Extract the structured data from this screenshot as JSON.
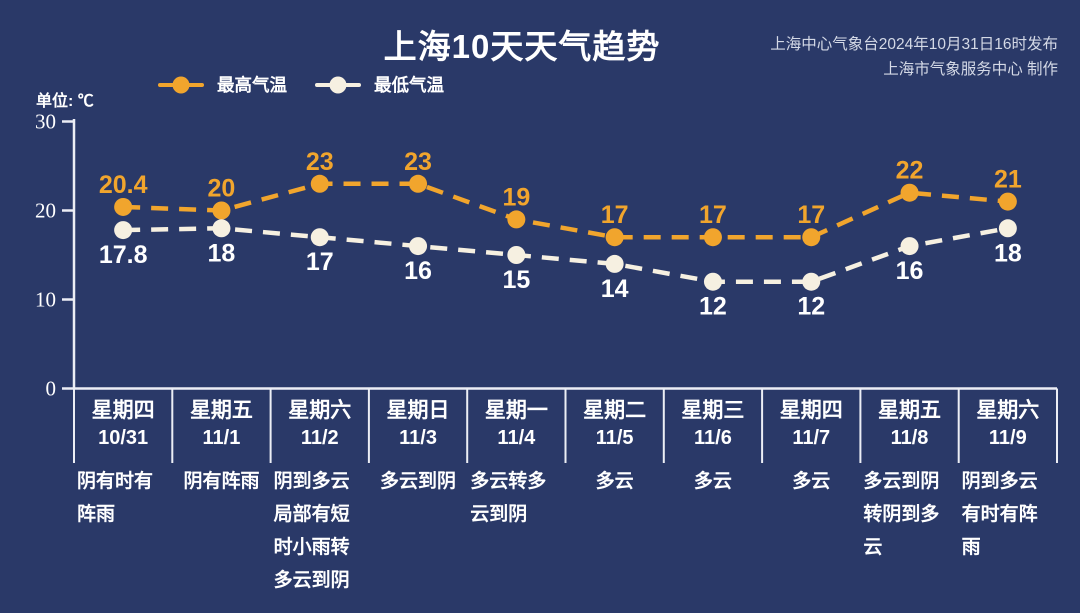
{
  "header": {
    "title": "上海10天天气趋势",
    "source_line1": "上海中心气象台2024年10月31日16时发布",
    "source_line2": "上海市气象服务中心 制作"
  },
  "legend": {
    "unit_label": "单位: ℃",
    "items": [
      {
        "label": "最高气温",
        "color": "#f1a52d"
      },
      {
        "label": "最低气温",
        "color": "#f6f0e1"
      }
    ]
  },
  "chart_data": {
    "type": "line",
    "title": "上海10天天气趋势",
    "x": [
      "10/31",
      "11/1",
      "11/2",
      "11/3",
      "11/4",
      "11/5",
      "11/6",
      "11/7",
      "11/8",
      "11/9"
    ],
    "series": [
      {
        "name": "最高气温",
        "color": "#f1a52d",
        "label_color": "#f1a52d",
        "values": [
          20.4,
          20,
          23,
          23,
          19,
          17,
          17,
          17,
          22,
          21
        ]
      },
      {
        "name": "最低气温",
        "color": "#f6f0e1",
        "label_color": "#ffffff",
        "values": [
          17.8,
          18,
          17,
          16,
          15,
          14,
          12,
          12,
          16,
          18
        ]
      }
    ],
    "ylabel": "单位: ℃",
    "yticks": [
      30,
      20,
      10,
      0
    ],
    "ylim": [
      0,
      30
    ],
    "grid": false,
    "line_style": "dashed",
    "legend_position": "top-left",
    "axis_color": "#eceef5"
  },
  "forecast": {
    "days": [
      {
        "weekday": "星期四",
        "date": "10/31",
        "weather": "阴有时有阵雨"
      },
      {
        "weekday": "星期五",
        "date": "11/1",
        "weather": "阴有阵雨"
      },
      {
        "weekday": "星期六",
        "date": "11/2",
        "weather": "阴到多云局部有短时小雨转多云到阴"
      },
      {
        "weekday": "星期日",
        "date": "11/3",
        "weather": "多云到阴"
      },
      {
        "weekday": "星期一",
        "date": "11/4",
        "weather": "多云转多云到阴"
      },
      {
        "weekday": "星期二",
        "date": "11/5",
        "weather": "多云"
      },
      {
        "weekday": "星期三",
        "date": "11/6",
        "weather": "多云"
      },
      {
        "weekday": "星期四",
        "date": "11/7",
        "weather": "多云"
      },
      {
        "weekday": "星期五",
        "date": "11/8",
        "weather": "多云到阴转阴到多云"
      },
      {
        "weekday": "星期六",
        "date": "11/9",
        "weather": "阴到多云有时有阵雨"
      }
    ]
  }
}
